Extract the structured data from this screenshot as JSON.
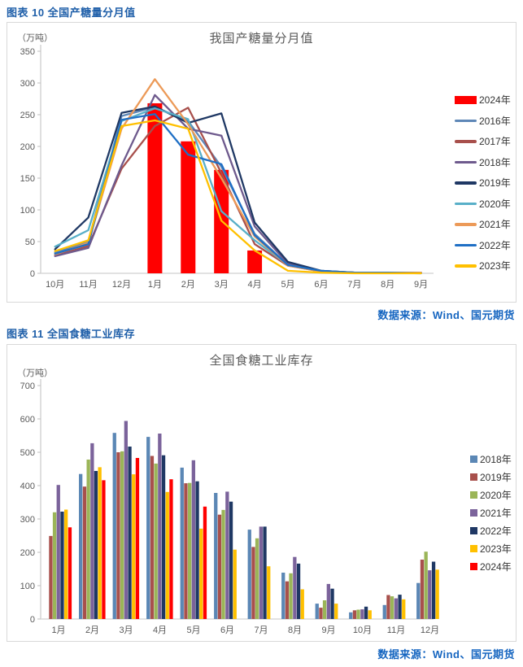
{
  "page": {
    "figure10_header": "图表 10  全国产糖量分月值",
    "figure11_header": "图表 11  全国食糖工业库存",
    "source_note": "数据来源：Wind、国元期货"
  },
  "colors": {
    "header_blue": "#1F5FA9",
    "source_blue": "#1565C0",
    "axis_gray": "#BFBFBF",
    "axis_light": "#D9D9D9",
    "text_gray": "#595959"
  },
  "chart_data": [
    {
      "id": "monthly-sugar-production",
      "type": "combo-bar-line",
      "title": "我国产糖量分月值",
      "unit_label": "（万吨）",
      "categories": [
        "10月",
        "11月",
        "12月",
        "1月",
        "2月",
        "3月",
        "4月",
        "5月",
        "6月",
        "7月",
        "8月",
        "9月"
      ],
      "ylim": [
        0,
        350
      ],
      "ytick_step": 50,
      "grid": false,
      "legend_position": "right",
      "bar_series": {
        "name": "2024年",
        "color": "#FF0000",
        "values": [
          null,
          null,
          null,
          268,
          208,
          163,
          36,
          null,
          null,
          null,
          null,
          null
        ]
      },
      "line_series": [
        {
          "name": "2016年",
          "color": "#5E87B7",
          "values": [
            33,
            50,
            248,
            262,
            240,
            168,
            62,
            13,
            4,
            1,
            1,
            1
          ]
        },
        {
          "name": "2017年",
          "color": "#A8504C",
          "values": [
            28,
            43,
            165,
            232,
            261,
            158,
            46,
            12,
            3,
            1,
            1,
            1
          ]
        },
        {
          "name": "2018年",
          "color": "#6E5A8D",
          "values": [
            27,
            40,
            170,
            281,
            228,
            217,
            74,
            15,
            3,
            1,
            1,
            1
          ]
        },
        {
          "name": "2019年",
          "color": "#1F3864",
          "values": [
            38,
            88,
            253,
            263,
            237,
            252,
            80,
            18,
            4,
            1,
            1,
            1
          ]
        },
        {
          "name": "2020年",
          "color": "#58AFC8",
          "values": [
            42,
            68,
            240,
            260,
            243,
            98,
            52,
            13,
            3,
            1,
            1,
            1
          ]
        },
        {
          "name": "2021年",
          "color": "#EC9A58",
          "values": [
            30,
            48,
            228,
            306,
            235,
            150,
            58,
            12,
            3,
            1,
            1,
            1
          ]
        },
        {
          "name": "2022年",
          "color": "#1F6FC5",
          "values": [
            31,
            46,
            242,
            251,
            187,
            172,
            60,
            13,
            4,
            1,
            1,
            0
          ]
        },
        {
          "name": "2023年",
          "color": "#FFC000",
          "values": [
            35,
            52,
            232,
            241,
            228,
            83,
            36,
            4,
            1,
            0,
            0,
            0
          ]
        }
      ]
    },
    {
      "id": "industrial-sugar-inventory",
      "type": "bar",
      "title": "全国食糖工业库存",
      "unit_label": "（万吨）",
      "categories": [
        "1月",
        "2月",
        "3月",
        "4月",
        "5月",
        "6月",
        "7月",
        "8月",
        "9月",
        "10月",
        "11月",
        "12月"
      ],
      "ylim": [
        0,
        700
      ],
      "ytick_step": 100,
      "grid": false,
      "legend_position": "right",
      "series": [
        {
          "name": "2018年",
          "color": "#5B87B5",
          "values": [
            null,
            435,
            558,
            546,
            454,
            378,
            268,
            139,
            46,
            20,
            42,
            108
          ]
        },
        {
          "name": "2019年",
          "color": "#A8504C",
          "values": [
            249,
            397,
            500,
            489,
            407,
            313,
            216,
            113,
            34,
            26,
            72,
            178
          ]
        },
        {
          "name": "2020年",
          "color": "#9BB558",
          "values": [
            320,
            478,
            503,
            466,
            408,
            327,
            242,
            137,
            56,
            28,
            68,
            202
          ]
        },
        {
          "name": "2021年",
          "color": "#7B639B",
          "values": [
            402,
            527,
            594,
            556,
            476,
            382,
            277,
            186,
            105,
            29,
            62,
            146
          ]
        },
        {
          "name": "2022年",
          "color": "#1F3864",
          "values": [
            322,
            444,
            517,
            491,
            413,
            352,
            277,
            166,
            91,
            37,
            73,
            172
          ]
        },
        {
          "name": "2023年",
          "color": "#FFC000",
          "values": [
            328,
            455,
            434,
            381,
            271,
            208,
            158,
            89,
            46,
            26,
            59,
            148
          ]
        },
        {
          "name": "2024年",
          "color": "#FF0000",
          "values": [
            275,
            416,
            483,
            419,
            337,
            null,
            null,
            null,
            null,
            null,
            null,
            null
          ]
        }
      ]
    }
  ]
}
